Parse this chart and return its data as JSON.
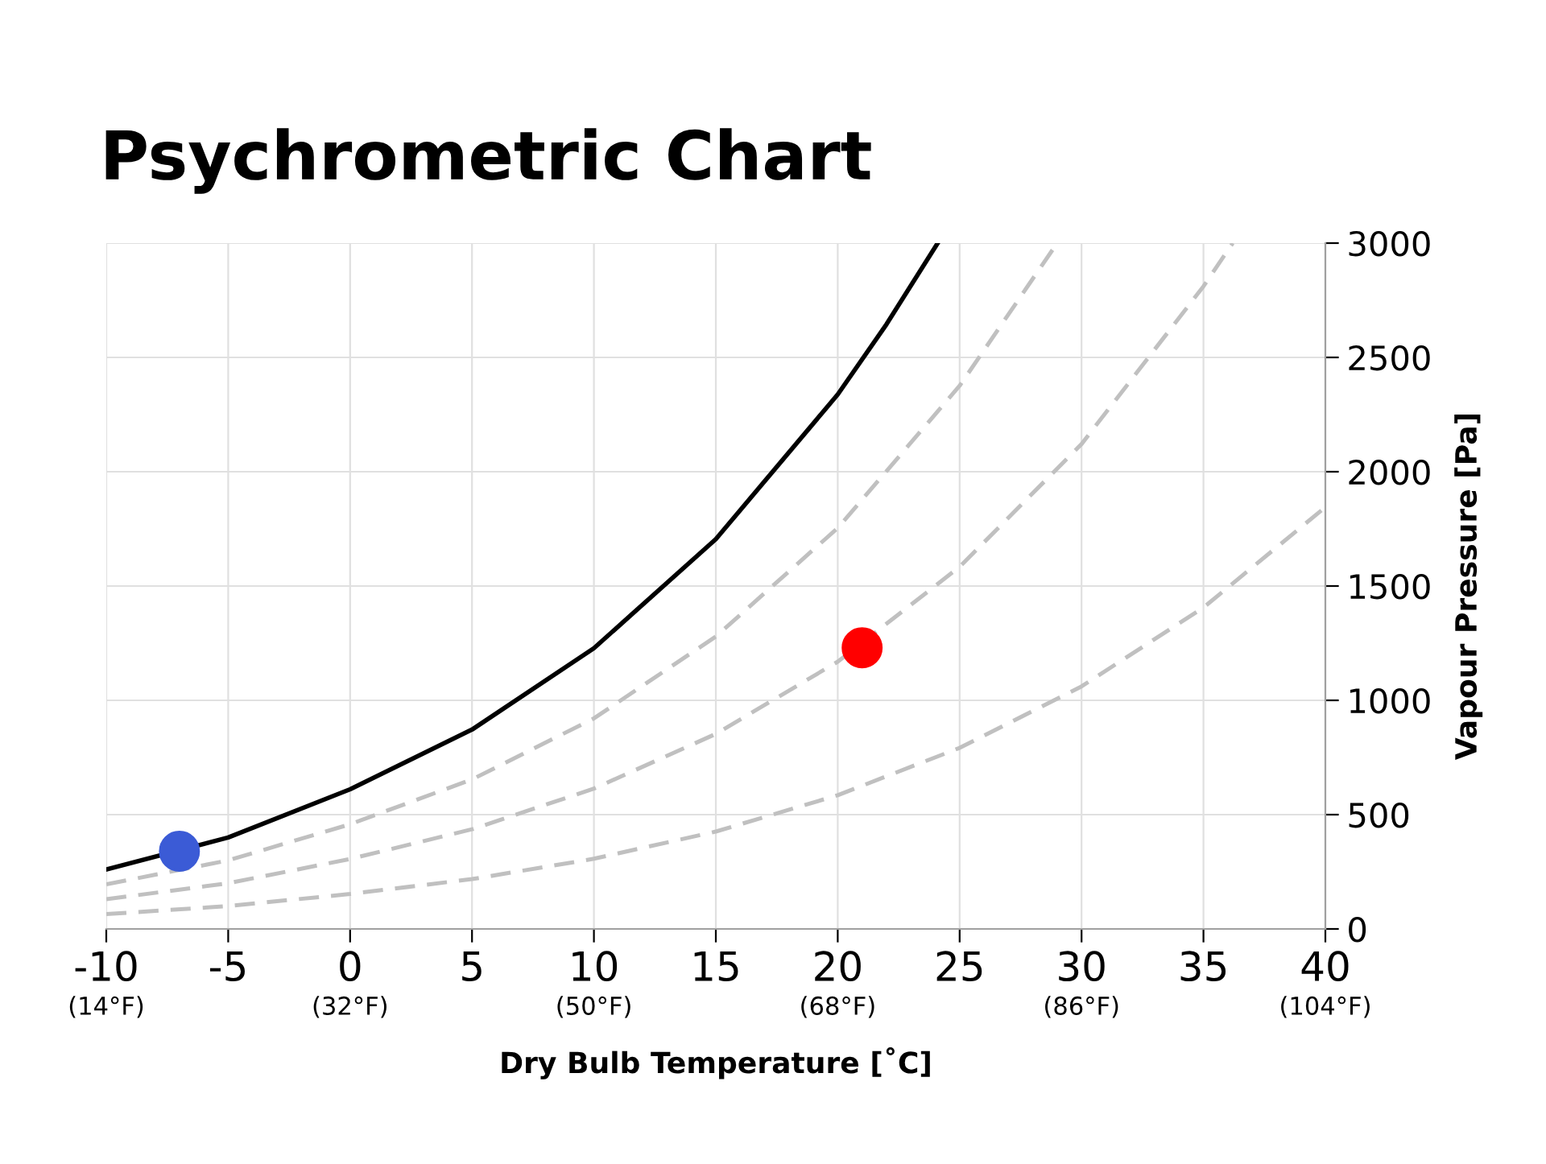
{
  "chart_data": {
    "type": "line",
    "title": "Psychrometric Chart",
    "xlabel": "Dry Bulb Temperature [˚C]",
    "ylabel": "Vapour Pressure [Pa]",
    "xlim": [
      -10,
      40
    ],
    "xticks": [
      -10,
      -5,
      0,
      5,
      10,
      15,
      20,
      25,
      30,
      35,
      40
    ],
    "x2lim": [
      14,
      104
    ],
    "x2ticks": [
      {
        "value": 14,
        "label": "(14°F)"
      },
      {
        "value": 32,
        "label": "(32°F)"
      },
      {
        "value": 50,
        "label": "(50°F)"
      },
      {
        "value": 68,
        "label": "(68°F)"
      },
      {
        "value": 86,
        "label": "(86°F)"
      },
      {
        "value": 104,
        "label": "(104°F)"
      }
    ],
    "ylim": [
      0,
      3000
    ],
    "yticks": [
      0,
      500,
      1000,
      1500,
      2000,
      2500,
      3000
    ],
    "grid": true,
    "series": [
      {
        "color": "#000000",
        "line_style": "solid",
        "x": [
          -10,
          -5,
          0,
          5,
          10,
          15,
          20,
          22,
          24.1
        ],
        "values": [
          260,
          400,
          611,
          872,
          1228,
          1705,
          2338,
          2645,
          3000
        ]
      },
      {
        "color": "#c0c0c0",
        "line_style": "dashed",
        "x": [
          -10,
          -5,
          0,
          5,
          10,
          15,
          20,
          25,
          29
        ],
        "values": [
          195,
          300,
          458,
          654,
          921,
          1279,
          1754,
          2376,
          3000
        ]
      },
      {
        "color": "#c0c0c0",
        "line_style": "dashed",
        "x": [
          -10,
          -5,
          0,
          5,
          10,
          15,
          20,
          25,
          30,
          35,
          36.2
        ],
        "values": [
          130,
          200,
          306,
          436,
          614,
          853,
          1169,
          1584,
          2121,
          2811,
          3000
        ]
      },
      {
        "color": "#c0c0c0",
        "line_style": "dashed",
        "x": [
          -10,
          -5,
          0,
          5,
          10,
          15,
          20,
          25,
          30,
          35,
          40
        ],
        "values": [
          65,
          100,
          153,
          218,
          307,
          426,
          585,
          792,
          1061,
          1406,
          1845
        ]
      },
      {
        "type": "scatter",
        "color": "#3b5bd6",
        "marker": "circle",
        "x": [
          -7
        ],
        "values": [
          340
        ]
      },
      {
        "type": "scatter",
        "color": "#ff0000",
        "marker": "circle",
        "x": [
          21
        ],
        "values": [
          1230
        ]
      }
    ]
  }
}
